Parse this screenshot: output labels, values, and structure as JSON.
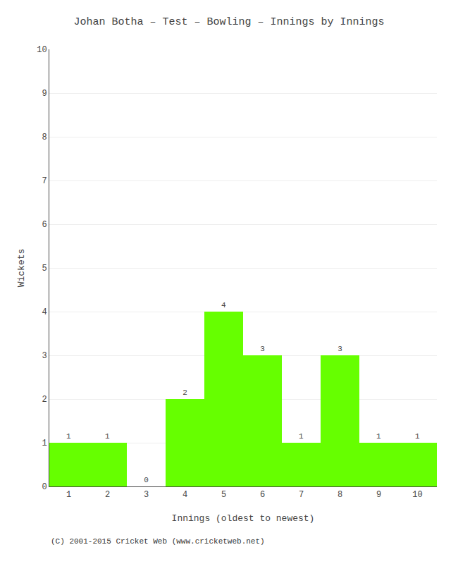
{
  "chart_data": {
    "type": "bar",
    "title": "Johan Botha – Test – Bowling – Innings by Innings",
    "xlabel": "Innings (oldest to newest)",
    "ylabel": "Wickets",
    "categories": [
      "1",
      "2",
      "3",
      "4",
      "5",
      "6",
      "7",
      "8",
      "9",
      "10"
    ],
    "values": [
      1,
      1,
      0,
      2,
      4,
      3,
      1,
      3,
      1,
      1
    ],
    "color": "#66ff00",
    "ylim": [
      0,
      10
    ],
    "yticks": [
      0,
      1,
      2,
      3,
      4,
      5,
      6,
      7,
      8,
      9,
      10
    ],
    "grid": true,
    "data_labels": true,
    "annotations": [
      "(C) 2001-2015 Cricket Web (www.cricketweb.net)"
    ]
  }
}
